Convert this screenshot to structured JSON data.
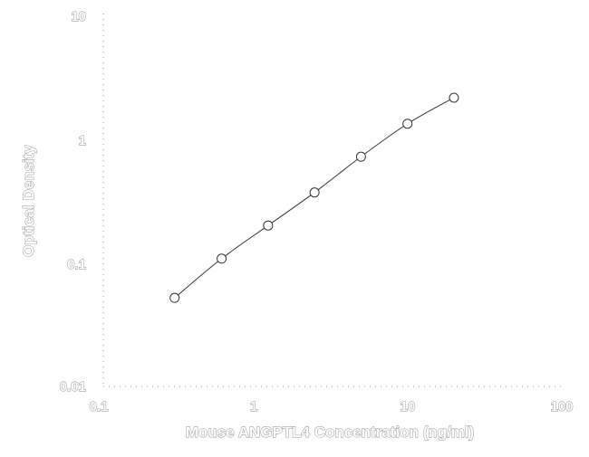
{
  "chart_data": {
    "type": "scatter",
    "xlabel": "Mouse ANGPTL4 Concentration (ng/ml)",
    "ylabel": "Optical Density",
    "x_scale": "log",
    "y_scale": "log",
    "xlim": [
      0.1,
      100
    ],
    "ylim": [
      0.01,
      10
    ],
    "x_ticks": [
      "0.1",
      "1",
      "10",
      "100"
    ],
    "y_ticks": [
      "0.01",
      "0.1",
      "1",
      "10"
    ],
    "grid": "dotted",
    "series": [
      {
        "x": [
          0.31,
          0.625,
          1.25,
          2.5,
          5,
          10,
          20
        ],
        "y": [
          0.052,
          0.108,
          0.2,
          0.37,
          0.72,
          1.33,
          2.16
        ]
      }
    ]
  }
}
